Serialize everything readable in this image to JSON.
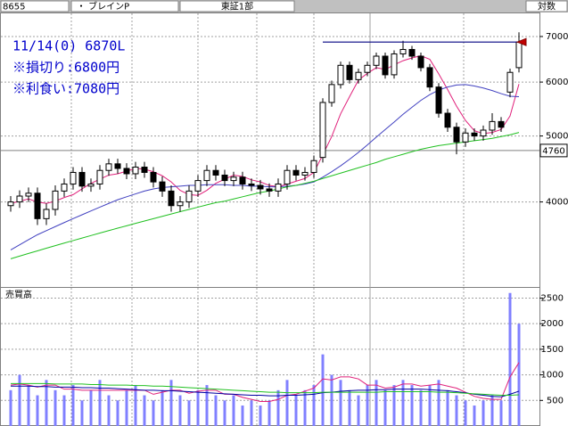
{
  "header": {
    "code": "8655",
    "name": "・ ブレインP",
    "market": "東証1部",
    "scale": "対数"
  },
  "chart_data": [
    {
      "type": "candlestick",
      "log_scale": true,
      "grid": true,
      "annotations": [
        "11/14(0) 6870L",
        "※損切り:6800円",
        "※利食い:7080円"
      ],
      "hline": 6870,
      "price_marker": 4760,
      "ylim": [
        3000,
        7570
      ],
      "yticks": [
        4000,
        5000,
        6000,
        7000
      ],
      "open": [
        3950,
        4000,
        4080,
        4120,
        3780,
        3900,
        4150,
        4250,
        4420,
        4220,
        4250,
        4450,
        4550,
        4480,
        4400,
        4500,
        4420,
        4280,
        4150,
        3950,
        4000,
        4150,
        4300,
        4450,
        4380,
        4300,
        4350,
        4250,
        4230,
        4180,
        4150,
        4250,
        4450,
        4380,
        4420,
        4650,
        5600,
        5950,
        6350,
        6050,
        6200,
        6350,
        6550,
        6150,
        6600,
        6700,
        6550,
        6300,
        5900,
        5400,
        5150,
        4900,
        5050,
        5000,
        5100,
        5250,
        5800,
        6300
      ],
      "high": [
        4080,
        4160,
        4200,
        4200,
        3980,
        4230,
        4330,
        4500,
        4500,
        4330,
        4530,
        4630,
        4630,
        4560,
        4580,
        4580,
        4500,
        4360,
        4230,
        4080,
        4230,
        4380,
        4530,
        4530,
        4460,
        4430,
        4430,
        4330,
        4310,
        4260,
        4330,
        4530,
        4530,
        4500,
        4680,
        5680,
        6030,
        6430,
        6430,
        6280,
        6430,
        6630,
        6630,
        6680,
        6900,
        6780,
        6630,
        6380,
        5980,
        5480,
        5230,
        5130,
        5130,
        5180,
        5400,
        5330,
        6280,
        7100
      ],
      "low": [
        3870,
        3920,
        4000,
        3700,
        3700,
        3820,
        4070,
        4170,
        4140,
        4140,
        4170,
        4370,
        4400,
        4320,
        4320,
        4340,
        4200,
        4070,
        3870,
        3870,
        3920,
        4070,
        4220,
        4300,
        4220,
        4220,
        4170,
        4150,
        4100,
        4070,
        4070,
        4170,
        4300,
        4300,
        4340,
        4570,
        5520,
        5870,
        5970,
        5970,
        6120,
        6270,
        6070,
        6070,
        6520,
        6470,
        6220,
        5820,
        5320,
        5070,
        4700,
        4820,
        4920,
        4920,
        5020,
        5070,
        5700,
        6200
      ],
      "close": [
        4000,
        4080,
        4120,
        3780,
        3900,
        4150,
        4250,
        4420,
        4220,
        4250,
        4450,
        4550,
        4480,
        4400,
        4500,
        4420,
        4280,
        4150,
        3950,
        4000,
        4150,
        4300,
        4450,
        4380,
        4300,
        4350,
        4250,
        4230,
        4180,
        4150,
        4250,
        4450,
        4380,
        4420,
        4600,
        5600,
        5950,
        6350,
        6050,
        6200,
        6350,
        6550,
        6150,
        6600,
        6700,
        6550,
        6300,
        5900,
        5400,
        5150,
        4900,
        5050,
        5000,
        5100,
        5250,
        5150,
        6200,
        6870
      ],
      "series": [
        {
          "color": "#e0207a",
          "values": [
            3980,
            4010,
            4040,
            4000,
            3980,
            4010,
            4060,
            4100,
            4180,
            4260,
            4320,
            4380,
            4400,
            4440,
            4480,
            4470,
            4430,
            4370,
            4280,
            4160,
            4100,
            4090,
            4160,
            4260,
            4320,
            4380,
            4360,
            4310,
            4280,
            4230,
            4210,
            4250,
            4290,
            4330,
            4420,
            4690,
            4990,
            5390,
            5710,
            6040,
            6180,
            6300,
            6260,
            6360,
            6450,
            6510,
            6560,
            6480,
            6170,
            5850,
            5530,
            5270,
            5090,
            5040,
            5060,
            5110,
            5350,
            5960
          ]
        },
        {
          "color": "#4040c0",
          "values": [
            3400,
            3460,
            3520,
            3580,
            3630,
            3680,
            3730,
            3780,
            3830,
            3880,
            3930,
            3980,
            4030,
            4070,
            4110,
            4150,
            4180,
            4200,
            4210,
            4220,
            4230,
            4230,
            4240,
            4240,
            4240,
            4230,
            4230,
            4220,
            4220,
            4210,
            4210,
            4220,
            4230,
            4250,
            4280,
            4350,
            4430,
            4520,
            4620,
            4730,
            4850,
            4980,
            5110,
            5240,
            5380,
            5510,
            5640,
            5750,
            5840,
            5900,
            5940,
            5950,
            5920,
            5880,
            5830,
            5770,
            5720,
            5710
          ]
        },
        {
          "color": "#20c020",
          "values": [
            3300,
            3330,
            3360,
            3390,
            3420,
            3450,
            3480,
            3510,
            3540,
            3570,
            3600,
            3630,
            3660,
            3690,
            3720,
            3750,
            3780,
            3810,
            3840,
            3870,
            3900,
            3930,
            3960,
            3990,
            4010,
            4040,
            4070,
            4100,
            4130,
            4150,
            4180,
            4210,
            4230,
            4260,
            4290,
            4330,
            4370,
            4410,
            4450,
            4490,
            4530,
            4570,
            4620,
            4660,
            4700,
            4740,
            4780,
            4810,
            4840,
            4860,
            4880,
            4900,
            4920,
            4940,
            4960,
            4990,
            5020,
            5060
          ]
        }
      ]
    },
    {
      "type": "bar",
      "title": "売買高",
      "color": "#8080ff",
      "grid": true,
      "ylim": [
        0,
        2700
      ],
      "yticks": [
        500,
        1000,
        1500,
        2000,
        2500
      ],
      "values": [
        700,
        1000,
        800,
        600,
        900,
        700,
        600,
        800,
        500,
        700,
        900,
        600,
        500,
        700,
        800,
        600,
        500,
        700,
        900,
        600,
        500,
        700,
        800,
        600,
        500,
        600,
        400,
        500,
        400,
        500,
        700,
        900,
        600,
        700,
        800,
        1400,
        1000,
        900,
        700,
        600,
        800,
        900,
        700,
        800,
        900,
        800,
        700,
        800,
        900,
        700,
        600,
        500,
        400,
        500,
        600,
        500,
        2600,
        2000
      ],
      "series": [
        {
          "color": "#e0207a",
          "values": [
            800,
            820,
            800,
            760,
            800,
            800,
            720,
            720,
            700,
            700,
            700,
            700,
            700,
            700,
            700,
            700,
            620,
            660,
            700,
            700,
            640,
            680,
            700,
            700,
            620,
            620,
            560,
            520,
            480,
            480,
            520,
            600,
            620,
            680,
            740,
            920,
            900,
            960,
            960,
            920,
            800,
            800,
            740,
            760,
            820,
            820,
            780,
            800,
            820,
            780,
            740,
            660,
            580,
            540,
            520,
            520,
            960,
            1240
          ]
        },
        {
          "color": "#0000a0",
          "values": [
            780,
            780,
            780,
            770,
            770,
            760,
            760,
            760,
            750,
            750,
            740,
            740,
            730,
            720,
            710,
            700,
            700,
            690,
            690,
            680,
            670,
            660,
            650,
            640,
            630,
            620,
            610,
            600,
            600,
            590,
            590,
            600,
            600,
            610,
            620,
            650,
            660,
            680,
            690,
            700,
            700,
            710,
            710,
            720,
            720,
            720,
            720,
            710,
            700,
            690,
            670,
            650,
            620,
            600,
            580,
            570,
            620,
            680
          ]
        },
        {
          "color": "#20c020",
          "values": [
            830,
            830,
            830,
            830,
            830,
            820,
            820,
            820,
            820,
            810,
            810,
            800,
            800,
            800,
            790,
            790,
            780,
            780,
            770,
            760,
            750,
            740,
            730,
            720,
            710,
            700,
            690,
            680,
            670,
            660,
            660,
            650,
            650,
            650,
            650,
            660,
            660,
            660,
            660,
            660,
            660,
            660,
            670,
            670,
            670,
            670,
            670,
            670,
            660,
            660,
            650,
            640,
            630,
            620,
            610,
            600,
            600,
            610
          ]
        }
      ]
    }
  ]
}
